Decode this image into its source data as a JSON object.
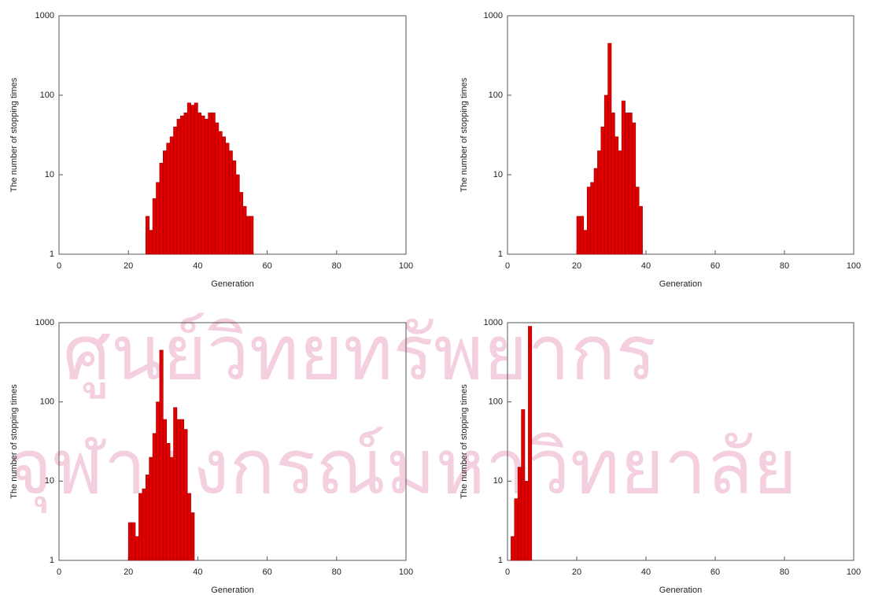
{
  "watermark": [
    "ศูนย์วิทยทรัพยากร",
    "จุฬาลงกรณ์มหาวิทยาลัย"
  ],
  "chart_data": [
    {
      "type": "histogram",
      "xlabel": "Generation",
      "ylabel": "The number of stopping times",
      "color": "#e00000",
      "yscale": "log",
      "xlim": [
        0,
        100
      ],
      "xticks": [
        0,
        20,
        40,
        60,
        80,
        100
      ],
      "ylim": [
        1,
        1000
      ],
      "yticks": [
        1,
        10,
        100,
        1000
      ],
      "bins": [
        25,
        26,
        27,
        28,
        29,
        30,
        31,
        32,
        33,
        34,
        35,
        36,
        37,
        38,
        39,
        40,
        41,
        42,
        43,
        44,
        45,
        46,
        47,
        48,
        49,
        50,
        51,
        52,
        53,
        54,
        55,
        56
      ],
      "counts": [
        3,
        2,
        5,
        8,
        14,
        20,
        25,
        30,
        40,
        50,
        55,
        60,
        80,
        75,
        80,
        60,
        55,
        50,
        60,
        60,
        45,
        35,
        30,
        25,
        20,
        15,
        10,
        6,
        4,
        3,
        3
      ]
    },
    {
      "type": "histogram",
      "xlabel": "Generation",
      "ylabel": "The number of stopping times",
      "color": "#e00000",
      "yscale": "log",
      "xlim": [
        0,
        100
      ],
      "xticks": [
        0,
        20,
        40,
        60,
        80,
        100
      ],
      "ylim": [
        1,
        1000
      ],
      "yticks": [
        1,
        10,
        100,
        1000
      ],
      "bins": [
        20,
        21,
        22,
        23,
        24,
        25,
        26,
        27,
        28,
        29,
        30,
        31,
        32,
        33,
        34,
        35,
        36,
        37,
        38,
        39
      ],
      "counts": [
        3,
        3,
        2,
        7,
        8,
        12,
        20,
        40,
        100,
        450,
        60,
        30,
        20,
        85,
        60,
        60,
        45,
        7,
        4
      ]
    },
    {
      "type": "histogram",
      "xlabel": "Generation",
      "ylabel": "The number of stopping times",
      "color": "#e00000",
      "yscale": "log",
      "xlim": [
        0,
        100
      ],
      "xticks": [
        0,
        20,
        40,
        60,
        80,
        100
      ],
      "ylim": [
        1,
        1000
      ],
      "yticks": [
        1,
        10,
        100,
        1000
      ],
      "bins": [
        20,
        21,
        22,
        23,
        24,
        25,
        26,
        27,
        28,
        29,
        30,
        31,
        32,
        33,
        34,
        35,
        36,
        37,
        38,
        39
      ],
      "counts": [
        3,
        3,
        2,
        7,
        8,
        12,
        20,
        40,
        100,
        450,
        60,
        30,
        20,
        85,
        60,
        60,
        45,
        7,
        4
      ]
    },
    {
      "type": "histogram",
      "xlabel": "Generation",
      "ylabel": "The number of stopping times",
      "color": "#e00000",
      "yscale": "log",
      "xlim": [
        0,
        100
      ],
      "xticks": [
        0,
        20,
        40,
        60,
        80,
        100
      ],
      "ylim": [
        1,
        1000
      ],
      "yticks": [
        1,
        10,
        100,
        1000
      ],
      "bins": [
        1,
        2,
        3,
        4,
        5,
        6,
        7
      ],
      "counts": [
        2,
        6,
        15,
        80,
        10,
        900
      ]
    }
  ]
}
